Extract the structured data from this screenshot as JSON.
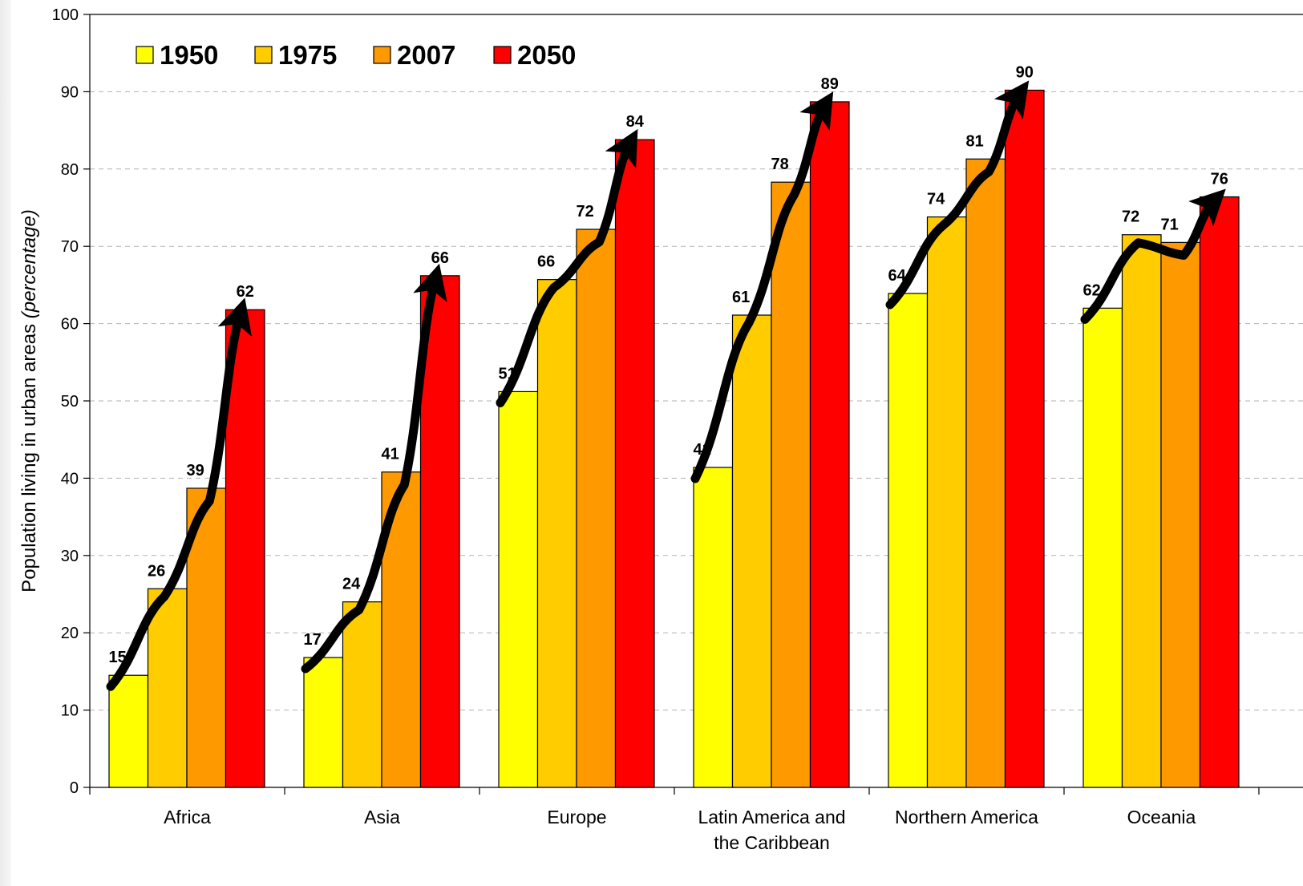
{
  "chart_data": {
    "type": "bar",
    "title": "",
    "xlabel": "",
    "ylabel": "Population living in urban areas",
    "ylabel_italic": "(percentage)",
    "ylim": [
      0,
      100
    ],
    "yticks": [
      0,
      10,
      20,
      30,
      40,
      50,
      60,
      70,
      80,
      90,
      100
    ],
    "grid": true,
    "legend": "top-left",
    "categories": [
      [
        "Africa"
      ],
      [
        "Asia"
      ],
      [
        "Europe"
      ],
      [
        "Latin America and",
        "the Caribbean"
      ],
      [
        "Northern America"
      ],
      [
        "Oceania"
      ]
    ],
    "series": [
      {
        "name": "1950",
        "color": "#FFFF00",
        "values": [
          14.5,
          16.8,
          51.2,
          41.4,
          63.9,
          62.0
        ],
        "labels": [
          "15",
          "17",
          "51",
          "41",
          "64",
          "62"
        ]
      },
      {
        "name": "1975",
        "color": "#FFCC00",
        "values": [
          25.7,
          24.0,
          65.7,
          61.1,
          73.8,
          71.5
        ],
        "labels": [
          "26",
          "24",
          "66",
          "61",
          "74",
          "72"
        ]
      },
      {
        "name": "2007",
        "color": "#FF9900",
        "values": [
          38.7,
          40.8,
          72.2,
          78.3,
          81.3,
          70.5
        ],
        "labels": [
          "39",
          "41",
          "72",
          "78",
          "81",
          "71"
        ]
      },
      {
        "name": "2050",
        "color": "#FF0000",
        "values": [
          61.8,
          66.2,
          83.8,
          88.7,
          90.2,
          76.4
        ],
        "labels": [
          "62",
          "66",
          "84",
          "89",
          "90",
          "76"
        ]
      }
    ],
    "trend_arrows": true
  }
}
